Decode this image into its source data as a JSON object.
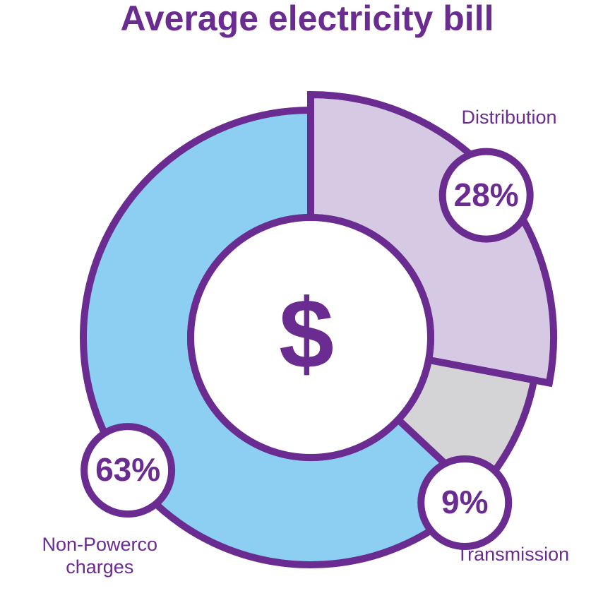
{
  "chart_data": {
    "type": "donut",
    "title": "Average electricity bill",
    "center_label": "$",
    "categories": [
      "Distribution",
      "Transmission",
      "Non-Powerco charges"
    ],
    "values": [
      28,
      9,
      63
    ],
    "value_labels": [
      "28%",
      "9%",
      "63%"
    ],
    "colors": [
      "#d6c9e4",
      "#d4d4d6",
      "#8ccff3"
    ],
    "stroke_color": "#6b2c91"
  }
}
